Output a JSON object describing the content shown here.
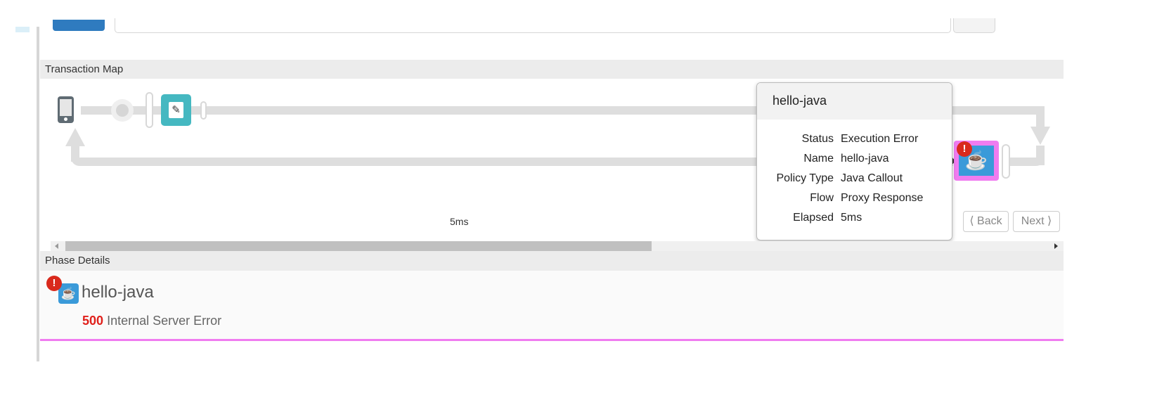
{
  "transaction_map": {
    "title": "Transaction Map",
    "elapsed_label": "5ms",
    "back_label": "Back",
    "next_label": "Next",
    "tooltip": {
      "title": "hello-java",
      "rows": [
        {
          "key": "Status",
          "value": "Execution Error"
        },
        {
          "key": "Name",
          "value": "hello-java"
        },
        {
          "key": "Policy Type",
          "value": "Java Callout"
        },
        {
          "key": "Flow",
          "value": "Proxy Response"
        },
        {
          "key": "Elapsed",
          "value": "5ms"
        }
      ]
    },
    "nodes": [
      {
        "icon": "phone-icon"
      },
      {
        "icon": "pencil-icon",
        "color": "#45b8c1"
      },
      {
        "icon": "java-icon",
        "color": "#3a9ad9",
        "highlight": "#f07cf0",
        "error": true
      }
    ]
  },
  "phase_details": {
    "title": "Phase Details",
    "policy_name": "hello-java",
    "status_code": "500",
    "status_text": "Internal Server Error"
  },
  "colors": {
    "error": "#d9291c",
    "highlight": "#f07cf0",
    "status_code": "#e0201b"
  }
}
